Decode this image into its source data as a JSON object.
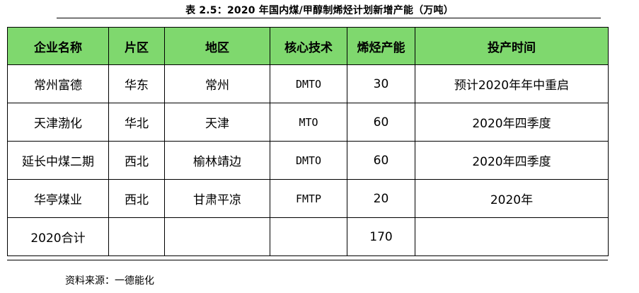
{
  "caption": "表 2.5：2020 年国内煤/甲醇制烯烃计划新增产能（万吨）",
  "table": {
    "headers": [
      "企业名称",
      "片区",
      "地区",
      "核心技术",
      "烯烃产能",
      "投产时间"
    ],
    "rows": [
      [
        "常州富德",
        "华东",
        "常州",
        "DMTO",
        "30",
        "预计2020年年中重启"
      ],
      [
        "天津渤化",
        "华北",
        "天津",
        "MTO",
        "60",
        "2020年四季度"
      ],
      [
        "延长中煤二期",
        "西北",
        "榆林靖边",
        "DMTO",
        "60",
        "2020年四季度"
      ],
      [
        "华亭煤业",
        "西北",
        "甘肃平凉",
        "FMTP",
        "20",
        "2020年"
      ],
      [
        "2020合计",
        "",
        "",
        "",
        "170",
        ""
      ]
    ]
  },
  "source": "资料来源：一德能化",
  "colors": {
    "header_fill": "#7fd86e",
    "border": "#000000"
  }
}
